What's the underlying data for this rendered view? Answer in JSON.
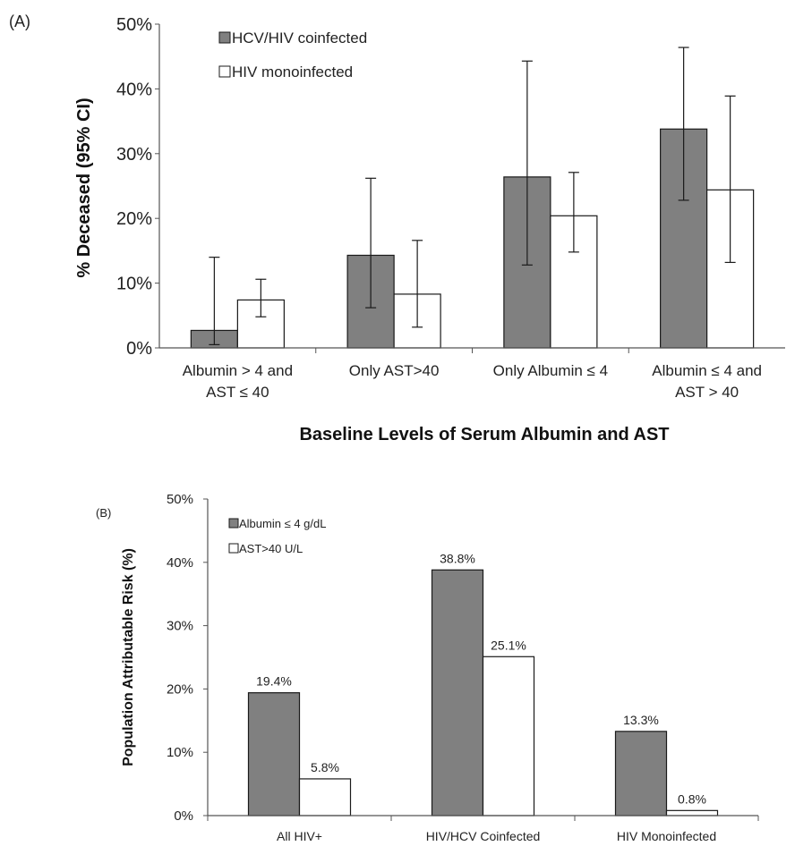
{
  "colors": {
    "coinfected": "#808080",
    "mono": "#ffffff",
    "stroke": "#1a1a1a",
    "axis": "#555555"
  },
  "chart_data": [
    {
      "panel": "(A)",
      "type": "bar",
      "ylabel": "% Deceased (95% CI)",
      "xlabel": "Baseline Levels of Serum Albumin  and AST",
      "ylim": [
        0,
        50
      ],
      "yticks": [
        "0%",
        "10%",
        "20%",
        "30%",
        "40%",
        "50%"
      ],
      "ytick_values": [
        0,
        10,
        20,
        30,
        40,
        50
      ],
      "categories": [
        [
          "Albumin > 4 and",
          "AST ≤ 40"
        ],
        [
          "Only AST>40"
        ],
        [
          "Only Albumin ≤ 4"
        ],
        [
          "Albumin ≤ 4 and",
          "AST > 40"
        ]
      ],
      "legend": "top-left",
      "series": [
        {
          "name": "HCV/HIV coinfected",
          "values": [
            2.7,
            14.3,
            26.4,
            33.8
          ],
          "ci_low": [
            0.5,
            6.2,
            12.8,
            22.8
          ],
          "ci_high": [
            14.0,
            26.2,
            44.3,
            46.4
          ]
        },
        {
          "name": "HIV monoinfected",
          "values": [
            7.4,
            8.3,
            20.4,
            24.4
          ],
          "ci_low": [
            4.8,
            3.2,
            14.8,
            13.2
          ],
          "ci_high": [
            10.6,
            16.6,
            27.1,
            38.9
          ]
        }
      ]
    },
    {
      "panel": "(B)",
      "type": "bar",
      "ylabel": "Population Attributable Risk (%)",
      "ylim": [
        0,
        50
      ],
      "yticks": [
        "0%",
        "10%",
        "20%",
        "30%",
        "40%",
        "50%"
      ],
      "ytick_values": [
        0,
        10,
        20,
        30,
        40,
        50
      ],
      "categories": [
        [
          "All HIV+"
        ],
        [
          "HIV/HCV Coinfected"
        ],
        [
          "HIV Monoinfected"
        ]
      ],
      "legend": "top-left",
      "series": [
        {
          "name": "Albumin ≤ 4 g/dL",
          "values": [
            19.4,
            38.8,
            13.3
          ],
          "labels": [
            "19.4%",
            "38.8%",
            "13.3%"
          ]
        },
        {
          "name": "AST>40 U/L",
          "values": [
            5.8,
            25.1,
            0.8
          ],
          "labels": [
            "5.8%",
            "25.1%",
            "0.8%"
          ]
        }
      ]
    }
  ]
}
